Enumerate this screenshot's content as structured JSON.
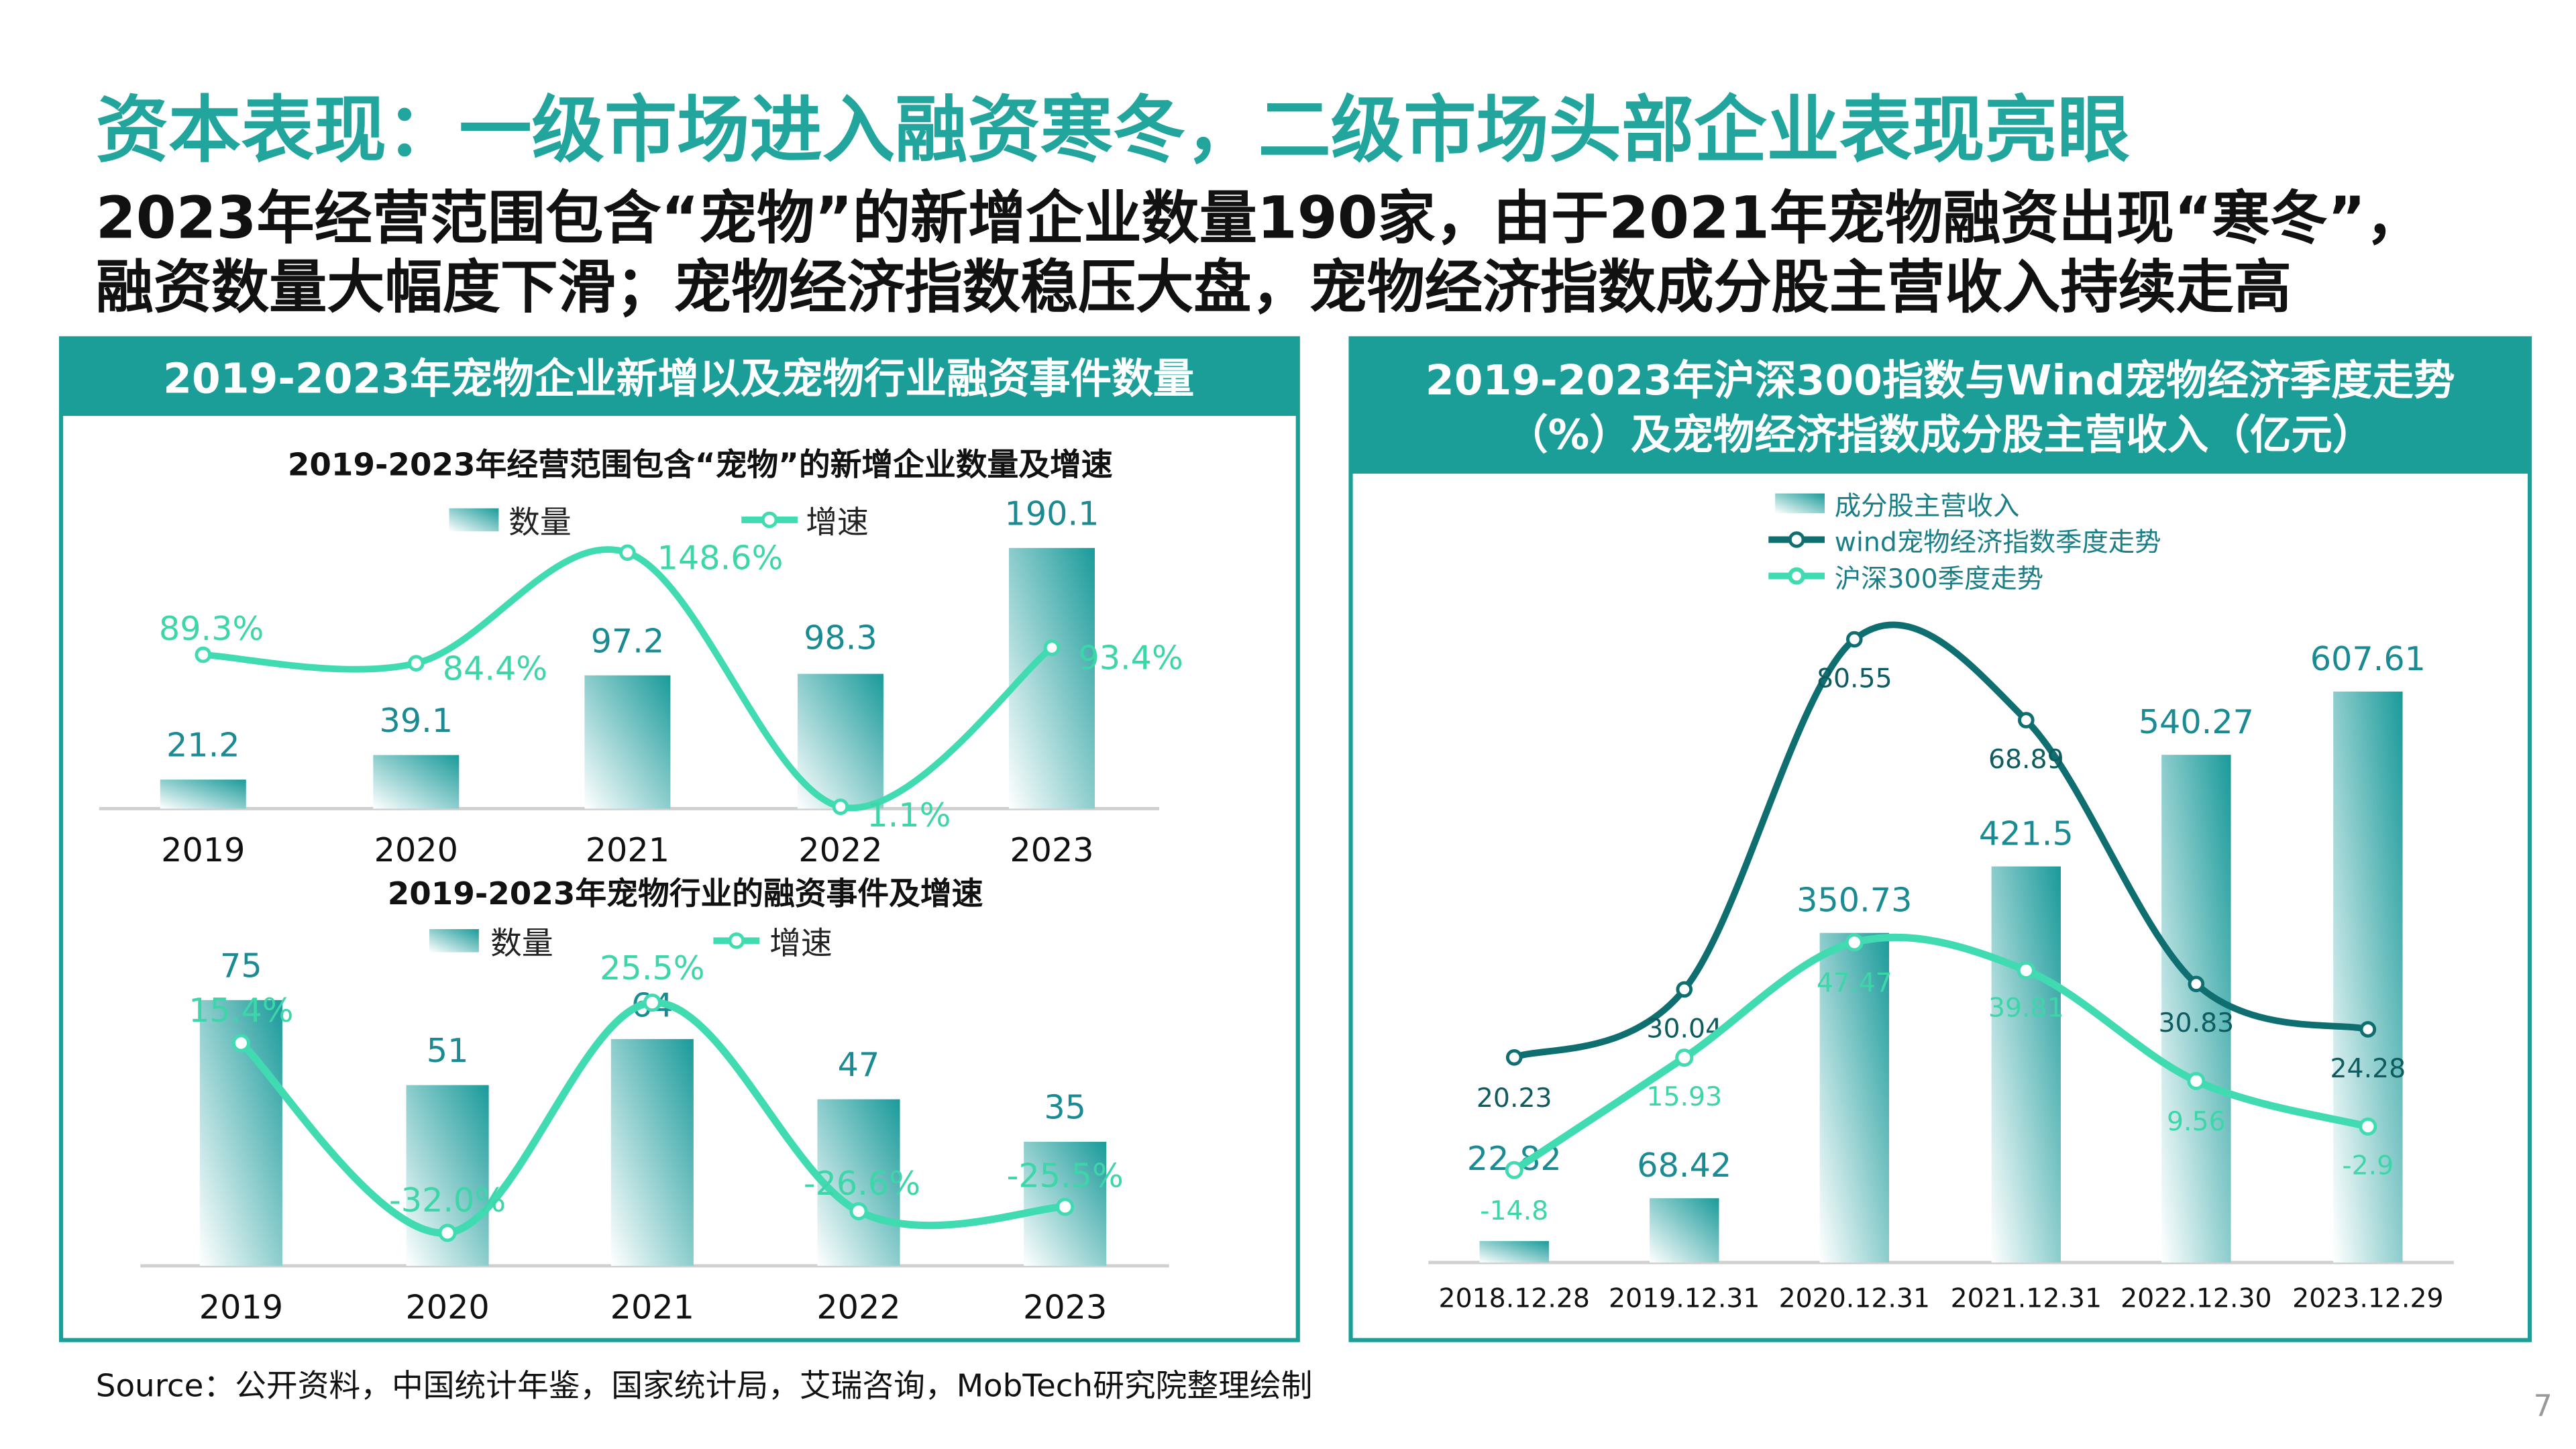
{
  "title": "资本表现：一级市场进入融资寒冬，二级市场头部企业表现亮眼",
  "subtitle_lines": [
    "2023年经营范围包含“宠物”的新增企业数量190家，由于2021年宠物融资出现“寒冬”，",
    "融资数量大幅度下滑；宠物经济指数稳压大盘，宠物经济指数成分股主营收入持续走高"
  ],
  "left_panel": {
    "header": "2019-2023年宠物企业新增以及宠物行业融资事件数量"
  },
  "right_panel": {
    "header_lines": [
      "2019-2023年沪深300指数与Wind宠物经济季度走势",
      "（%）及宠物经济指数成分股主营收入（亿元）"
    ]
  },
  "source": "Source：公开资料，中国统计年鉴，国家统计局，艾瑞咨询，MobTech研究院整理绘制",
  "page_number": "7",
  "colors": {
    "accent": "#21a59d",
    "header_band": "#1b9e98",
    "bar": "#1a9a9a",
    "growth_line": "#40dbb0",
    "wind_line": "#0e6e70"
  },
  "chart_data": [
    {
      "type": "bar",
      "title": "2019-2023年经营范围包含“宠物”的新增企业数量及增速",
      "categories": [
        "2019",
        "2020",
        "2021",
        "2022",
        "2023"
      ],
      "series": [
        {
          "name": "数量",
          "type": "bar",
          "values": [
            21.2,
            39.1,
            97.2,
            98.3,
            190.1
          ],
          "labels": [
            "21.2",
            "39.1",
            "97.2",
            "98.3",
            "190.1"
          ]
        },
        {
          "name": "增速",
          "type": "line",
          "values": [
            89.3,
            84.4,
            148.6,
            1.1,
            93.4
          ],
          "labels": [
            "89.3%",
            "84.4%",
            "148.6%",
            "1.1%",
            "93.4%"
          ]
        }
      ],
      "legend": "top",
      "grid": false
    },
    {
      "type": "bar",
      "title": "2019-2023年宠物行业的融资事件及增速",
      "categories": [
        "2019",
        "2020",
        "2021",
        "2022",
        "2023"
      ],
      "series": [
        {
          "name": "数量",
          "type": "bar",
          "values": [
            75,
            51,
            64,
            47,
            35
          ],
          "labels": [
            "75",
            "51",
            "64",
            "47",
            "35"
          ]
        },
        {
          "name": "增速",
          "type": "line",
          "values": [
            15.4,
            -32.0,
            25.5,
            -26.6,
            -25.5
          ],
          "labels": [
            "15.4%",
            "-32.0%",
            "25.5%",
            "-26.6%",
            "-25.5%"
          ]
        }
      ],
      "legend": "top",
      "grid": false
    },
    {
      "type": "bar",
      "categories": [
        "2018.12.28",
        "2019.12.31",
        "2020.12.31",
        "2021.12.31",
        "2022.12.30",
        "2023.12.29"
      ],
      "series": [
        {
          "name": "成分股主营收入",
          "type": "bar",
          "values": [
            22.82,
            68.42,
            350.73,
            421.5,
            540.27,
            607.61
          ],
          "labels": [
            "22.82",
            "68.42",
            "350.73",
            "421.5",
            "540.27",
            "607.61"
          ]
        },
        {
          "name": "wind宠物经济指数季度走势",
          "type": "line",
          "values": [
            20.23,
            30.04,
            80.55,
            68.89,
            30.83,
            24.28
          ],
          "labels": [
            "20.23",
            "30.04",
            "80.55",
            "68.89",
            "30.83",
            "24.28"
          ]
        },
        {
          "name": "沪深300季度走势",
          "type": "line",
          "values": [
            -14.8,
            15.93,
            47.47,
            39.81,
            9.56,
            -2.9
          ],
          "labels": [
            "-14.8",
            "15.93",
            "47.47",
            "39.81",
            "9.56",
            "-2.9"
          ]
        }
      ],
      "legend": "top",
      "grid": false
    }
  ]
}
